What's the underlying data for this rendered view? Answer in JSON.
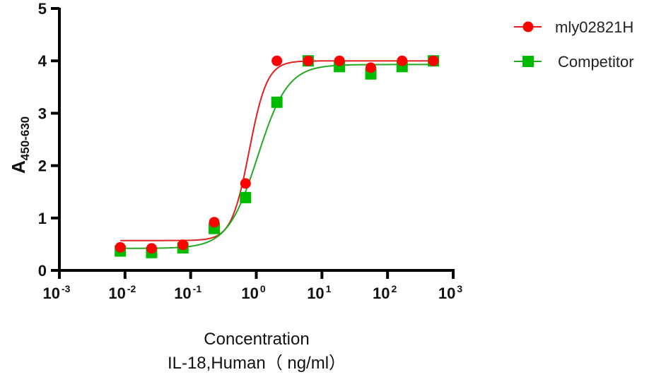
{
  "chart_data": {
    "type": "scatter",
    "title": "",
    "xlabel": [
      "Concentration",
      "IL-18,Human（ ng/ml）"
    ],
    "ylabel": "A",
    "ylabel_subscript": "450-630",
    "xscale": "log",
    "xlim": [
      0.001,
      1000
    ],
    "ylim": [
      0,
      5
    ],
    "xticks": [
      {
        "value": 0.001,
        "base": "10",
        "exp": "-3"
      },
      {
        "value": 0.01,
        "base": "10",
        "exp": "-2"
      },
      {
        "value": 0.1,
        "base": "10",
        "exp": "-1"
      },
      {
        "value": 1,
        "base": "10",
        "exp": "0"
      },
      {
        "value": 10,
        "base": "10",
        "exp": "1"
      },
      {
        "value": 100,
        "base": "10",
        "exp": "2"
      },
      {
        "value": 1000,
        "base": "10",
        "exp": "3"
      }
    ],
    "yticks": [
      0,
      1,
      2,
      3,
      4,
      5
    ],
    "grid": false,
    "legend_position": "top-right",
    "x": [
      0.00847,
      0.0254,
      0.0762,
      0.229,
      0.686,
      2.06,
      6.17,
      18.5,
      55.6,
      166.7,
      500
    ],
    "series": [
      {
        "name": "mly02821H",
        "marker": "circle",
        "color": "#ff0000",
        "line_color": "#e02020",
        "values": [
          0.44,
          0.42,
          0.49,
          0.92,
          1.66,
          4.0,
          4.0,
          4.0,
          3.87,
          4.0,
          4.0
        ],
        "fit": {
          "model": "4PL",
          "bottom": 0.57,
          "top": 4.0,
          "ec50": 0.78,
          "hill": 3.2
        }
      },
      {
        "name": "Competitor",
        "marker": "square",
        "color": "#00bb00",
        "line_color": "#22aa22",
        "values": [
          0.37,
          0.34,
          0.43,
          0.8,
          1.39,
          3.21,
          4.0,
          3.89,
          3.75,
          3.89,
          4.0
        ],
        "fit": {
          "model": "4PL",
          "bottom": 0.42,
          "top": 3.93,
          "ec50": 1.05,
          "hill": 1.9
        }
      }
    ]
  }
}
